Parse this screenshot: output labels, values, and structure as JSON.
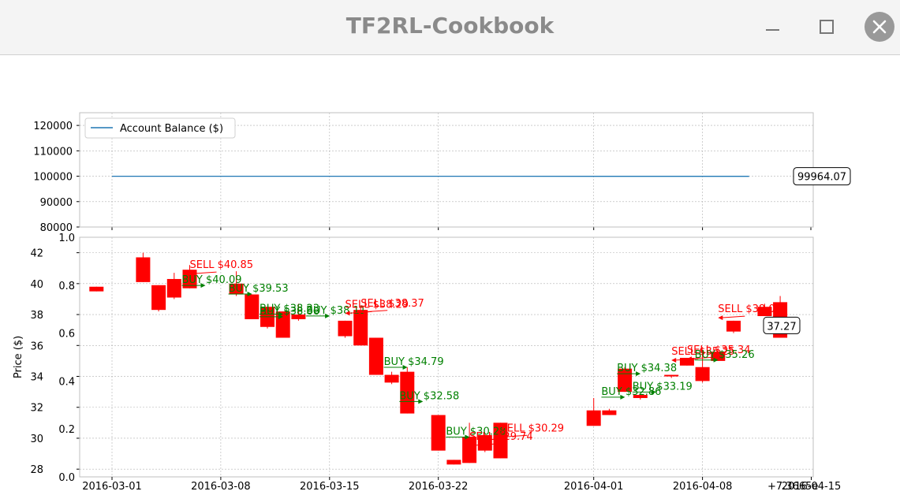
{
  "window": {
    "title": "TF2RL-Cookbook",
    "minimize_icon": "minimize-icon",
    "maximize_icon": "maximize-icon",
    "close_icon": "close-icon"
  },
  "colors": {
    "balance_line": "#1f77b4",
    "candle": "#ff0000",
    "candle_dark": "#8b3a00",
    "buy": "#008000",
    "sell": "#ff0000",
    "grid": "#b0b0b0"
  },
  "chart_data": [
    {
      "type": "line",
      "legend": [
        "Account Balance ($)"
      ],
      "legend_position": "top-left",
      "grid": true,
      "ylim": [
        80000,
        125000
      ],
      "yticks": [
        80000,
        90000,
        100000,
        110000,
        120000
      ],
      "series": [
        {
          "name": "Account Balance ($)",
          "x": [
            "2016-03-01",
            "2016-04-11"
          ],
          "values": [
            100000,
            99964.07
          ]
        }
      ],
      "annotations": [
        {
          "text": "99964.07",
          "y": 99964.07
        }
      ]
    },
    {
      "type": "candlestick",
      "ylabel": "Price ($)",
      "grid": true,
      "ylim": [
        27.5,
        43
      ],
      "yticks": [
        28,
        30,
        32,
        34,
        36,
        38,
        40,
        42
      ],
      "left_axis_ticks": [
        "0.0",
        "0.2",
        "0.4",
        "0.6",
        "0.8",
        "1.0"
      ],
      "xticks": [
        "2016-03-01",
        "2016-03-08",
        "2016-03-15",
        "2016-03-22",
        "2016-04-01",
        "2016-04-08",
        "2016-04-15"
      ],
      "x_offset_label": "+7.3665e",
      "candles": [
        {
          "date": "2016-02-29",
          "open": 39.5,
          "close": 39.8,
          "high": 39.8,
          "low": 39.5
        },
        {
          "date": "2016-03-03",
          "open": 41.7,
          "close": 40.1,
          "high": 42.0,
          "low": 40.1
        },
        {
          "date": "2016-03-04",
          "open": 39.9,
          "close": 38.3,
          "high": 39.9,
          "low": 38.2
        },
        {
          "date": "2016-03-05",
          "open": 40.3,
          "close": 39.1,
          "high": 40.7,
          "low": 39.0
        },
        {
          "date": "2016-03-06",
          "open": 40.9,
          "close": 39.7,
          "high": 41.2,
          "low": 39.7
        },
        {
          "date": "2016-03-09",
          "open": 40.0,
          "close": 39.3,
          "high": 40.8,
          "low": 39.2
        },
        {
          "date": "2016-03-10",
          "open": 39.3,
          "close": 37.7,
          "high": 39.3,
          "low": 37.7
        },
        {
          "date": "2016-03-11",
          "open": 38.5,
          "close": 37.2,
          "high": 38.5,
          "low": 37.1
        },
        {
          "date": "2016-03-12",
          "open": 38.2,
          "close": 36.5,
          "high": 38.2,
          "low": 36.5
        },
        {
          "date": "2016-03-13",
          "open": 38.0,
          "close": 37.7,
          "high": 38.7,
          "low": 37.6
        },
        {
          "date": "2016-03-16",
          "open": 37.6,
          "close": 36.6,
          "high": 37.6,
          "low": 36.5
        },
        {
          "date": "2016-03-17",
          "open": 38.3,
          "close": 36.0,
          "high": 38.6,
          "low": 36.0
        },
        {
          "date": "2016-03-18",
          "open": 36.5,
          "close": 34.1,
          "high": 36.5,
          "low": 34.1
        },
        {
          "date": "2016-03-19",
          "open": 34.1,
          "close": 33.6,
          "high": 34.3,
          "low": 33.5
        },
        {
          "date": "2016-03-20",
          "open": 34.3,
          "close": 31.6,
          "high": 34.6,
          "low": 31.6
        },
        {
          "date": "2016-03-22",
          "open": 31.5,
          "close": 29.2,
          "high": 31.5,
          "low": 29.2
        },
        {
          "date": "2016-03-23",
          "open": 28.6,
          "close": 28.3,
          "high": 28.6,
          "low": 28.3
        },
        {
          "date": "2016-03-24",
          "open": 30.1,
          "close": 28.4,
          "high": 31.0,
          "low": 28.4
        },
        {
          "date": "2016-03-25",
          "open": 30.2,
          "close": 29.2,
          "high": 30.3,
          "low": 29.1
        },
        {
          "date": "2016-03-26",
          "open": 31.0,
          "close": 28.7,
          "high": 31.0,
          "low": 28.7
        },
        {
          "date": "2016-04-01",
          "open": 31.8,
          "close": 30.8,
          "high": 32.6,
          "low": 30.8
        },
        {
          "date": "2016-04-02",
          "open": 31.8,
          "close": 31.5,
          "high": 31.9,
          "low": 31.5
        },
        {
          "date": "2016-04-03",
          "open": 34.5,
          "close": 33.0,
          "high": 34.6,
          "low": 33.0
        },
        {
          "date": "2016-04-04",
          "open": 32.8,
          "close": 32.6,
          "high": 32.8,
          "low": 32.5
        },
        {
          "date": "2016-04-06",
          "open": 34.1,
          "close": 34.0,
          "high": 34.1,
          "low": 33.9
        },
        {
          "date": "2016-04-07",
          "open": 35.2,
          "close": 34.7,
          "high": 35.2,
          "low": 34.7
        },
        {
          "date": "2016-04-08",
          "open": 34.6,
          "close": 33.7,
          "high": 35.7,
          "low": 33.6
        },
        {
          "date": "2016-04-09",
          "open": 35.6,
          "close": 35.0,
          "high": 35.8,
          "low": 35.0
        },
        {
          "date": "2016-04-10",
          "open": 37.6,
          "close": 36.9,
          "high": 37.6,
          "low": 36.8
        },
        {
          "date": "2016-04-12",
          "open": 38.5,
          "close": 37.9,
          "high": 38.7,
          "low": 37.9
        },
        {
          "date": "2016-04-13",
          "open": 38.8,
          "close": 36.5,
          "high": 39.2,
          "low": 36.5
        }
      ],
      "trades": [
        {
          "type": "sell",
          "text": "SELL $40.85",
          "date": "2016-03-06",
          "price": 40.85
        },
        {
          "type": "buy",
          "text": "BUY $40.09",
          "date": "2016-03-06",
          "price": 40.09
        },
        {
          "type": "buy",
          "text": "BUY $39.53",
          "date": "2016-03-09",
          "price": 39.53
        },
        {
          "type": "buy",
          "text": "BUY $38.23",
          "date": "2016-03-11",
          "price": 38.23
        },
        {
          "type": "buy",
          "text": "BUY $38.11",
          "date": "2016-03-14",
          "price": 38.11
        },
        {
          "type": "buy",
          "text": "BUY $38.06",
          "date": "2016-03-11",
          "price": 38.06
        },
        {
          "type": "sell",
          "text": "SELL $38.29",
          "date": "2016-03-16",
          "price": 38.29
        },
        {
          "type": "sell",
          "text": "SELL $38.37",
          "date": "2016-03-17",
          "price": 38.37
        },
        {
          "type": "buy",
          "text": "BUY $34.79",
          "date": "2016-03-19",
          "price": 34.79
        },
        {
          "type": "buy",
          "text": "BUY $32.58",
          "date": "2016-03-20",
          "price": 32.58
        },
        {
          "type": "buy",
          "text": "BUY $30.28",
          "date": "2016-03-23",
          "price": 30.28
        },
        {
          "type": "sell",
          "text": "SELL $30.29",
          "date": "2016-03-26",
          "price": 30.29
        },
        {
          "type": "sell",
          "text": "SELL $29.74",
          "date": "2016-03-24",
          "price": 29.74
        },
        {
          "type": "buy",
          "text": "BUY $34.38",
          "date": "2016-04-03",
          "price": 34.38
        },
        {
          "type": "buy",
          "text": "BUY $33.19",
          "date": "2016-04-04",
          "price": 33.19
        },
        {
          "type": "buy",
          "text": "BUY $32.86",
          "date": "2016-04-02",
          "price": 32.86
        },
        {
          "type": "sell",
          "text": "SELL $35.25",
          "date": "2016-04-06",
          "price": 35.25
        },
        {
          "type": "sell",
          "text": "SELL $35.34",
          "date": "2016-04-07",
          "price": 35.34
        },
        {
          "type": "buy",
          "text": "BUY $35.26",
          "date": "2016-04-08",
          "price": 35.26
        },
        {
          "type": "sell",
          "text": "SELL $38.0",
          "date": "2016-04-09",
          "price": 38.0
        }
      ],
      "annotations": [
        {
          "text": "37.27",
          "y": 37.27
        }
      ]
    }
  ]
}
